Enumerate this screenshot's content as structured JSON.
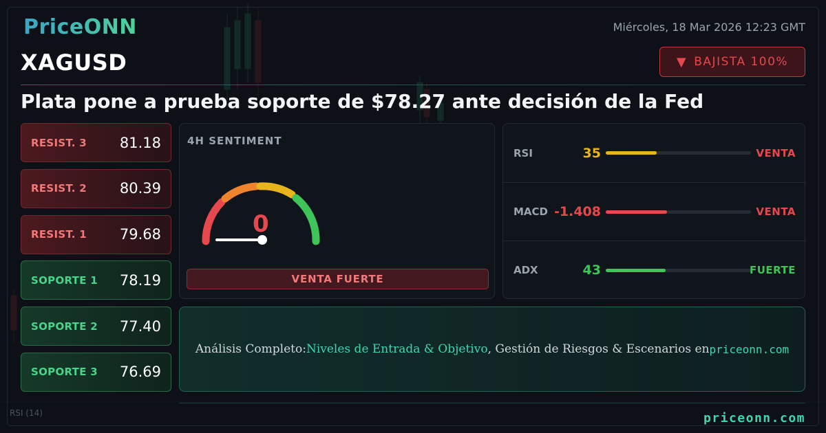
{
  "brand": {
    "logo": "PriceONN"
  },
  "symbol": "XAGUSD",
  "datetime": "Miércoles, 18 Mar 2026 12:23 GMT",
  "trend_badge": {
    "icon": "down-triangle-icon",
    "arrow": "▼",
    "label": "BAJISTA 100%"
  },
  "headline": "Plata pone a prueba soporte de $78.27 ante decisión de la Fed",
  "levels": [
    {
      "label": "RESIST. 3",
      "value": "81.18",
      "kind": "resistance"
    },
    {
      "label": "RESIST. 2",
      "value": "80.39",
      "kind": "resistance"
    },
    {
      "label": "RESIST. 1",
      "value": "79.68",
      "kind": "resistance"
    },
    {
      "label": "SOPORTE 1",
      "value": "78.19",
      "kind": "support"
    },
    {
      "label": "SOPORTE 2",
      "value": "77.40",
      "kind": "support"
    },
    {
      "label": "SOPORTE 3",
      "value": "76.69",
      "kind": "support"
    }
  ],
  "sentiment": {
    "title": "4H SENTIMENT",
    "value": "0",
    "signal": "VENTA FUERTE",
    "gauge_colors": [
      "#e5484d",
      "#f0842c",
      "#e8b61c",
      "#3fc45a"
    ]
  },
  "indicators": [
    {
      "name": "RSI",
      "value": "35",
      "level": 0.35,
      "signal": "VENTA",
      "color": "#e8b61c",
      "signal_color": "#e5484d"
    },
    {
      "name": "MACD",
      "value": "-1.408",
      "level": 0.42,
      "signal": "VENTA",
      "color": "#e5484d",
      "signal_color": "#e5484d"
    },
    {
      "name": "ADX",
      "value": "43",
      "level": 0.41,
      "signal": "FUERTE",
      "color": "#3fc45a",
      "signal_color": "#3fc45a"
    }
  ],
  "cta": {
    "prefix": "Análisis Completo: ",
    "highlight": "Niveles de Entrada & Objetivo",
    "middle": ", Gestión de Riesgos & Escenarios en ",
    "site": "priceonn.com"
  },
  "footer": {
    "site": "priceonn.com"
  },
  "background": {
    "rsi_label": "RSI  (14)"
  },
  "colors": {
    "accent": "#3fd6ae",
    "bearish": "#e5484d",
    "bullish": "#3fc45a",
    "background": "#0d1117"
  }
}
